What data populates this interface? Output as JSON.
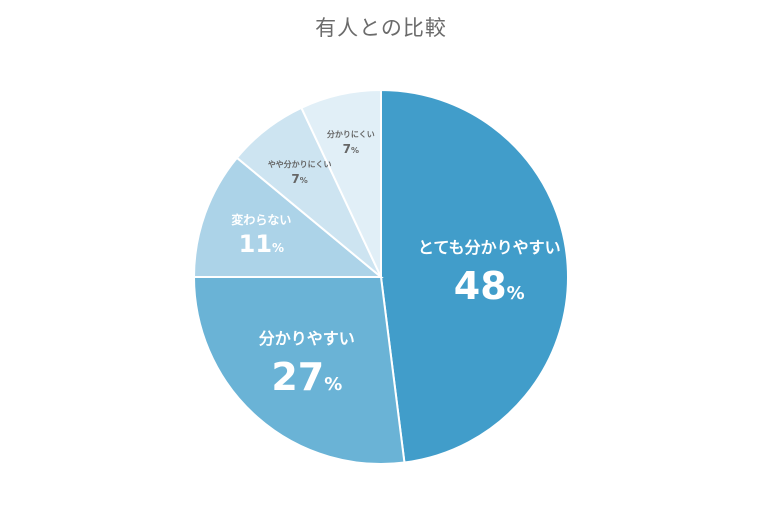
{
  "chart_data": {
    "type": "pie",
    "title": "有人との比較",
    "start_angle_deg": 0,
    "direction": "clockwise",
    "slices": [
      {
        "label": "とても分かりやすい",
        "value": 48,
        "value_text": "48",
        "unit": "%",
        "color": "#419dca"
      },
      {
        "label": "分かりやすい",
        "value": 27,
        "value_text": "27",
        "unit": "%",
        "color": "#6ab3d6"
      },
      {
        "label": "変わらない",
        "value": 11,
        "value_text": "11",
        "unit": "%",
        "color": "#acd3e8"
      },
      {
        "label": "やや分かりにくい",
        "value": 7,
        "value_text": "7",
        "unit": "%",
        "color": "#cde4f1"
      },
      {
        "label": "分かりにくい",
        "value": 7,
        "value_text": "7",
        "unit": "%",
        "color": "#e1eff7"
      }
    ]
  }
}
